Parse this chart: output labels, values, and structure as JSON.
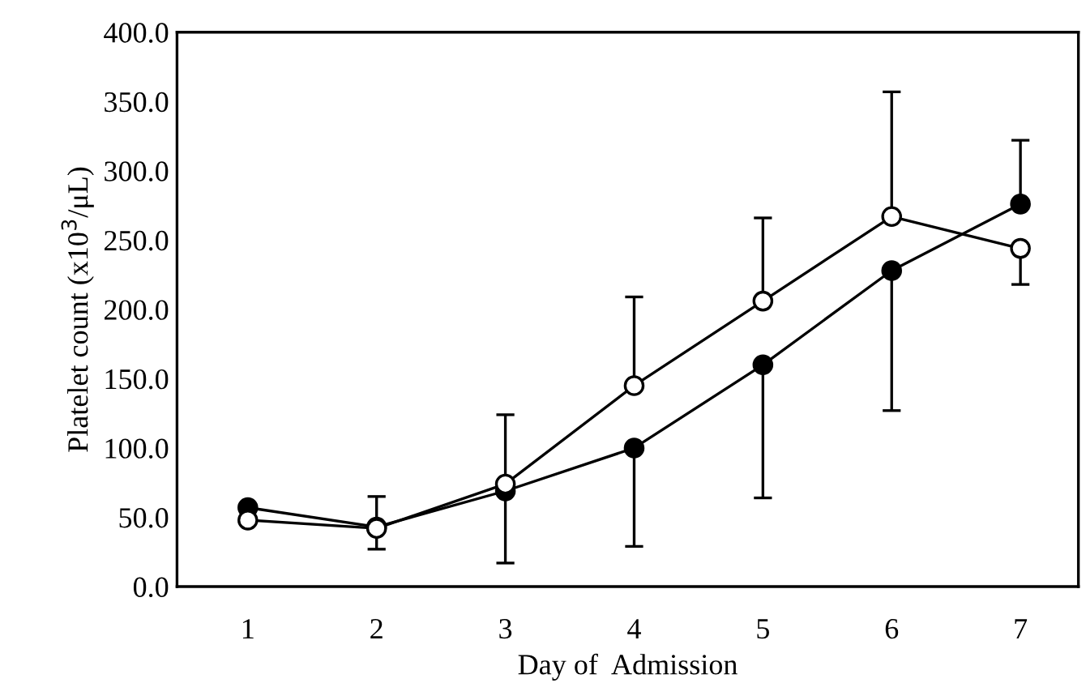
{
  "chart_data": {
    "type": "line",
    "xlabel": "Day of  Admission",
    "ylabel": "Platelet count (x10$^{3}$/μL)",
    "categories": [
      "1",
      "2",
      "3",
      "4",
      "5",
      "6",
      "7"
    ],
    "series": [
      {
        "color": "#000000",
        "marker": "circle",
        "values": [
          57,
          43,
          69,
          100,
          160,
          228,
          276
        ],
        "errors": [
          null,
          [
            27,
            43
          ],
          [
            17,
            69
          ],
          [
            29,
            100
          ],
          [
            64,
            160
          ],
          [
            127,
            228
          ],
          [
            276,
            322
          ]
        ]
      },
      {
        "color": "#ffffff",
        "marker": "circle",
        "values": [
          48,
          42,
          74,
          145,
          206,
          267,
          244
        ],
        "errors": [
          null,
          [
            42,
            65
          ],
          [
            74,
            124
          ],
          [
            145,
            209
          ],
          [
            206,
            266
          ],
          [
            267,
            357
          ],
          [
            218,
            244
          ]
        ]
      }
    ],
    "ylim": [
      0,
      400
    ],
    "yticks": [
      {
        "value": 0,
        "label": "0.0"
      },
      {
        "value": 50,
        "label": "50.0"
      },
      {
        "value": 100,
        "label": "100.0"
      },
      {
        "value": 150,
        "label": "150.0"
      },
      {
        "value": 200,
        "label": "200.0"
      },
      {
        "value": 250,
        "label": "250.0"
      },
      {
        "value": 300,
        "label": "300.0"
      },
      {
        "value": 350,
        "label": "350.0"
      },
      {
        "value": 400,
        "label": "400.0"
      }
    ],
    "grid": false,
    "legend": false
  }
}
